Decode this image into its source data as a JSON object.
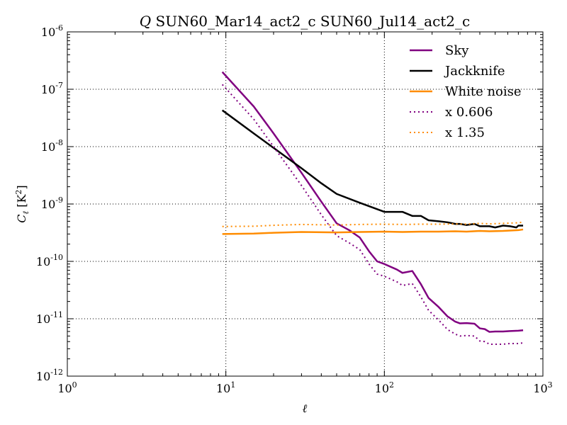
{
  "chart_data": {
    "type": "line",
    "title": "Q SUN60_Mar14_act2_c SUN60_Jul14_act2_c",
    "title_parts": {
      "italic": "Q",
      "rest": " SUN60_Mar14_act2_c SUN60_Jul14_act2_c"
    },
    "xlabel": "ℓ",
    "ylabel": {
      "base": "C",
      "sub": "ℓ",
      "unit_open": " [K",
      "unit_sup": "2",
      "unit_close": "]"
    },
    "xscale": "log",
    "yscale": "log",
    "xlim": [
      1,
      1000
    ],
    "ylim": [
      1e-12,
      1e-06
    ],
    "grid": true,
    "legend_position": "top-right",
    "x_ticks": [
      {
        "value": 1,
        "base": "10",
        "exp": "0"
      },
      {
        "value": 10,
        "base": "10",
        "exp": "1"
      },
      {
        "value": 100,
        "base": "10",
        "exp": "2"
      },
      {
        "value": 1000,
        "base": "10",
        "exp": "3"
      }
    ],
    "y_ticks": [
      {
        "value": 1e-12,
        "base": "10",
        "exp": "-12"
      },
      {
        "value": 1e-11,
        "base": "10",
        "exp": "-11"
      },
      {
        "value": 1e-10,
        "base": "10",
        "exp": "-10"
      },
      {
        "value": 1e-09,
        "base": "10",
        "exp": "-9"
      },
      {
        "value": 1e-08,
        "base": "10",
        "exp": "-8"
      },
      {
        "value": 1e-07,
        "base": "10",
        "exp": "-7"
      },
      {
        "value": 1e-06,
        "base": "10",
        "exp": "-6"
      }
    ],
    "series": [
      {
        "name": "Sky",
        "color": "#800080",
        "style": "solid",
        "points": [
          [
            9.5,
            2e-07
          ],
          [
            15,
            5e-08
          ],
          [
            20,
            1.7e-08
          ],
          [
            30,
            3.5e-09
          ],
          [
            40,
            1.1e-09
          ],
          [
            50,
            4.6e-10
          ],
          [
            60,
            3.5e-10
          ],
          [
            70,
            2.6e-10
          ],
          [
            80,
            1.5e-10
          ],
          [
            90,
            1e-10
          ],
          [
            100,
            9e-11
          ],
          [
            120,
            7.2e-11
          ],
          [
            130,
            6.3e-11
          ],
          [
            150,
            6.8e-11
          ],
          [
            170,
            4e-11
          ],
          [
            190,
            2.3e-11
          ],
          [
            220,
            1.6e-11
          ],
          [
            250,
            1.1e-11
          ],
          [
            280,
            8.9e-12
          ],
          [
            300,
            8.3e-12
          ],
          [
            330,
            8.4e-12
          ],
          [
            370,
            8.2e-12
          ],
          [
            400,
            6.8e-12
          ],
          [
            430,
            6.6e-12
          ],
          [
            460,
            5.9e-12
          ],
          [
            500,
            6e-12
          ],
          [
            560,
            6e-12
          ],
          [
            620,
            6.1e-12
          ],
          [
            700,
            6.2e-12
          ],
          [
            750,
            6.3e-12
          ]
        ]
      },
      {
        "name": "Jackknife",
        "color": "#000000",
        "style": "solid",
        "points": [
          [
            9.5,
            4.3e-08
          ],
          [
            15,
            1.7e-08
          ],
          [
            20,
            9.5e-09
          ],
          [
            30,
            4.2e-09
          ],
          [
            40,
            2.3e-09
          ],
          [
            50,
            1.5e-09
          ],
          [
            70,
            1.05e-09
          ],
          [
            100,
            7.3e-10
          ],
          [
            130,
            7.3e-10
          ],
          [
            150,
            6.2e-10
          ],
          [
            170,
            6.2e-10
          ],
          [
            190,
            5.2e-10
          ],
          [
            220,
            5e-10
          ],
          [
            250,
            4.8e-10
          ],
          [
            280,
            4.5e-10
          ],
          [
            300,
            4.5e-10
          ],
          [
            330,
            4.3e-10
          ],
          [
            370,
            4.5e-10
          ],
          [
            400,
            4.1e-10
          ],
          [
            430,
            4.1e-10
          ],
          [
            460,
            4.1e-10
          ],
          [
            500,
            3.9e-10
          ],
          [
            560,
            4.2e-10
          ],
          [
            620,
            4.1e-10
          ],
          [
            680,
            3.9e-10
          ],
          [
            700,
            4.2e-10
          ],
          [
            750,
            4.2e-10
          ]
        ]
      },
      {
        "name": "White noise",
        "color": "#ff8c00",
        "style": "solid",
        "points": [
          [
            9.5,
            3e-10
          ],
          [
            15,
            3.05e-10
          ],
          [
            20,
            3.15e-10
          ],
          [
            30,
            3.25e-10
          ],
          [
            50,
            3.2e-10
          ],
          [
            70,
            3.25e-10
          ],
          [
            100,
            3.3e-10
          ],
          [
            130,
            3.25e-10
          ],
          [
            170,
            3.3e-10
          ],
          [
            220,
            3.3e-10
          ],
          [
            280,
            3.35e-10
          ],
          [
            330,
            3.3e-10
          ],
          [
            400,
            3.4e-10
          ],
          [
            460,
            3.35e-10
          ],
          [
            560,
            3.4e-10
          ],
          [
            620,
            3.45e-10
          ],
          [
            700,
            3.5e-10
          ],
          [
            750,
            3.6e-10
          ]
        ]
      },
      {
        "name": "x 0.606",
        "color": "#800080",
        "style": "dotted",
        "points": [
          [
            9.5,
            1.21e-07
          ],
          [
            15,
            3e-08
          ],
          [
            20,
            1e-08
          ],
          [
            30,
            2.1e-09
          ],
          [
            40,
            6.5e-10
          ],
          [
            50,
            2.8e-10
          ],
          [
            60,
            2.1e-10
          ],
          [
            70,
            1.6e-10
          ],
          [
            80,
            9e-11
          ],
          [
            90,
            6e-11
          ],
          [
            100,
            5.5e-11
          ],
          [
            120,
            4.4e-11
          ],
          [
            130,
            3.8e-11
          ],
          [
            150,
            4.1e-11
          ],
          [
            170,
            2.4e-11
          ],
          [
            190,
            1.4e-11
          ],
          [
            220,
            9.5e-12
          ],
          [
            250,
            6.5e-12
          ],
          [
            280,
            5.4e-12
          ],
          [
            300,
            5e-12
          ],
          [
            330,
            5.1e-12
          ],
          [
            370,
            5e-12
          ],
          [
            400,
            4.1e-12
          ],
          [
            430,
            4e-12
          ],
          [
            460,
            3.6e-12
          ],
          [
            500,
            3.6e-12
          ],
          [
            560,
            3.6e-12
          ],
          [
            620,
            3.7e-12
          ],
          [
            700,
            3.7e-12
          ],
          [
            750,
            3.8e-12
          ]
        ]
      },
      {
        "name": "x 1.35",
        "color": "#ff8c00",
        "style": "dotted",
        "points": [
          [
            9.5,
            4.05e-10
          ],
          [
            15,
            4.1e-10
          ],
          [
            20,
            4.25e-10
          ],
          [
            30,
            4.4e-10
          ],
          [
            50,
            4.3e-10
          ],
          [
            70,
            4.4e-10
          ],
          [
            100,
            4.45e-10
          ],
          [
            130,
            4.4e-10
          ],
          [
            170,
            4.45e-10
          ],
          [
            220,
            4.45e-10
          ],
          [
            280,
            4.5e-10
          ],
          [
            330,
            4.45e-10
          ],
          [
            400,
            4.6e-10
          ],
          [
            460,
            4.5e-10
          ],
          [
            560,
            4.6e-10
          ],
          [
            620,
            4.65e-10
          ],
          [
            700,
            4.7e-10
          ],
          [
            750,
            4.85e-10
          ]
        ]
      }
    ]
  }
}
